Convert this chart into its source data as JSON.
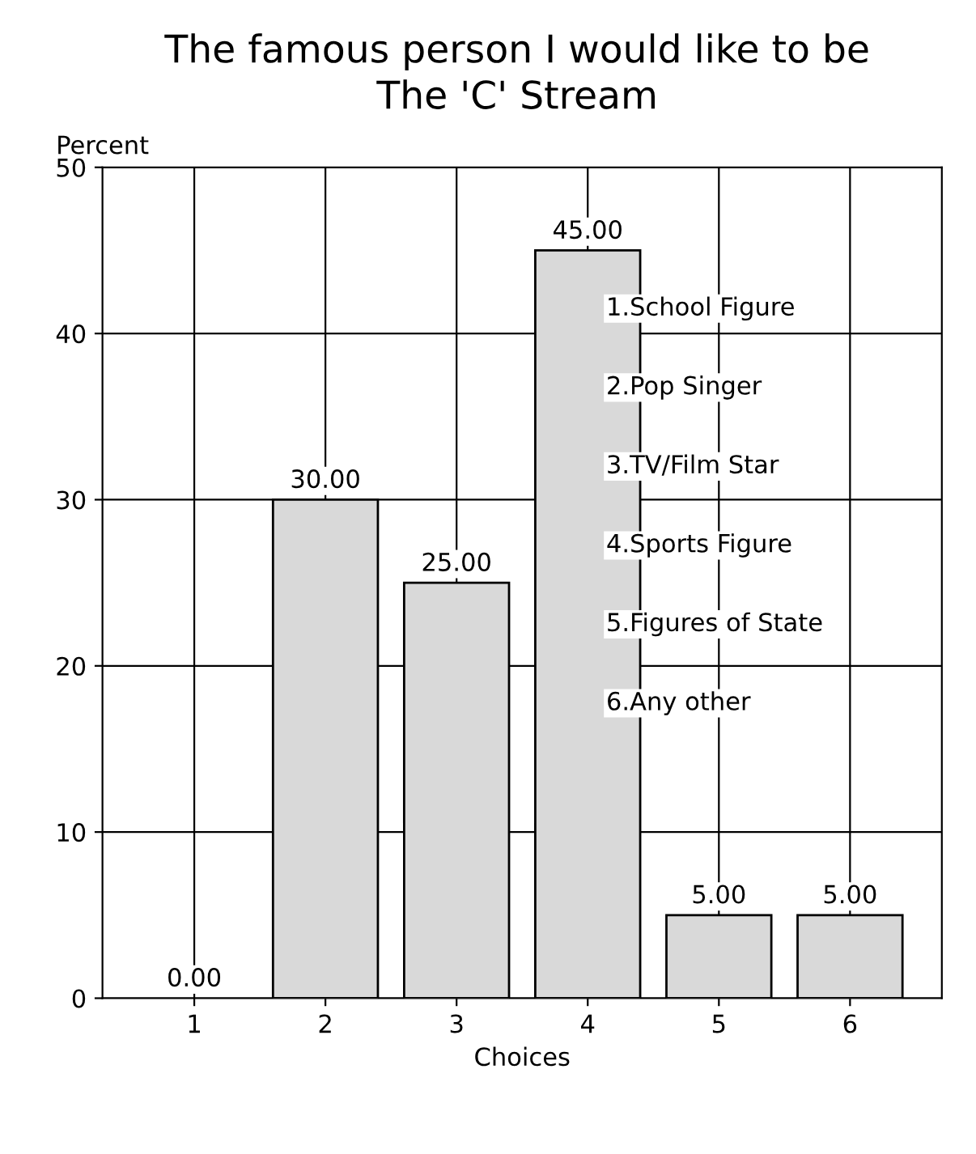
{
  "chart_data": {
    "type": "bar",
    "title": "The famous person I would like to be",
    "subtitle": "The 'C' Stream",
    "xlabel": "Choices",
    "ylabel": "Percent",
    "categories": [
      "1",
      "2",
      "3",
      "4",
      "5",
      "6"
    ],
    "values": [
      0,
      30,
      25,
      45,
      5,
      5
    ],
    "value_labels": [
      "0.00",
      "30.00",
      "25.00",
      "45.00",
      "5.00",
      "5.00"
    ],
    "color": "#d9d9d9",
    "ylim": [
      0,
      50
    ],
    "yticks": [
      0,
      10,
      20,
      30,
      40,
      50
    ],
    "grid": true,
    "annotations": [
      "1.School Figure",
      "2.Pop Singer",
      "3.TV/Film Star",
      "4.Sports Figure",
      "5.Figures of State",
      "6.Any other"
    ]
  }
}
